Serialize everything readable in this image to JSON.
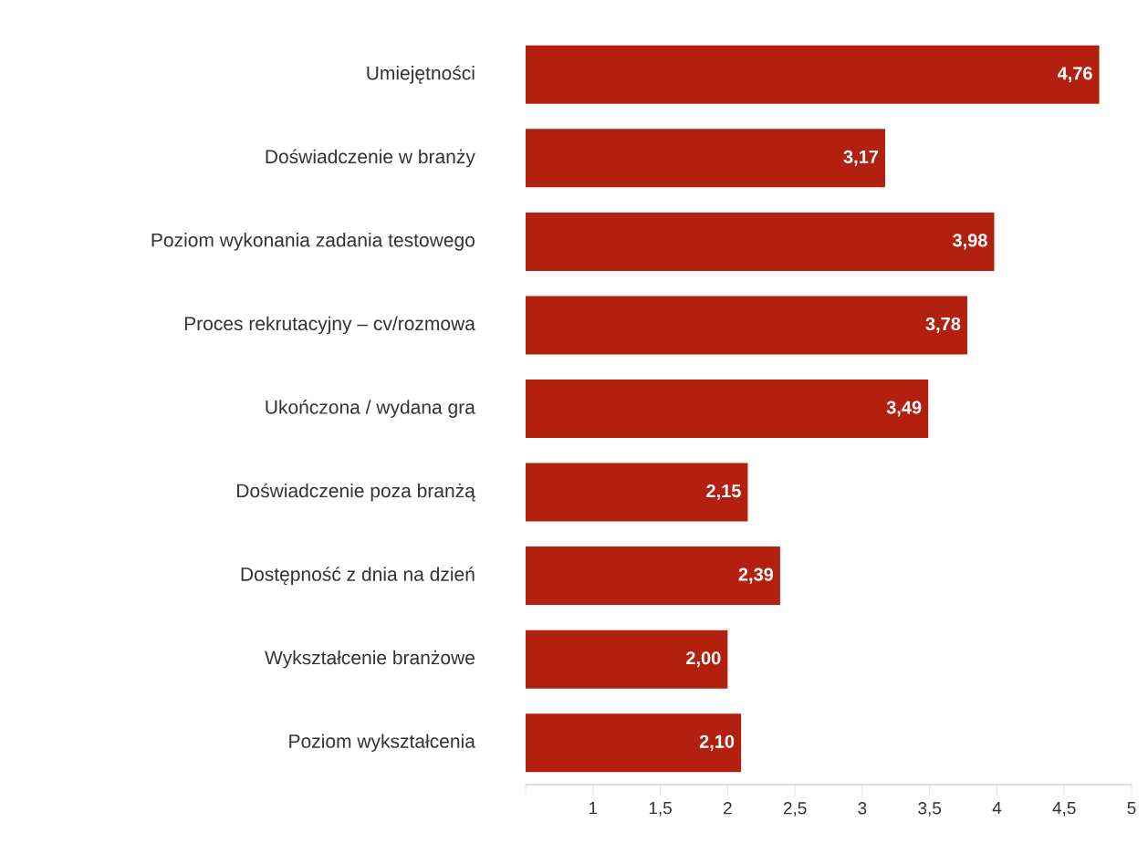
{
  "chart_data": {
    "type": "bar",
    "orientation": "horizontal",
    "categories": [
      "Umiejętności",
      "Doświadczenie w branży",
      "Poziom wykonania zadania testowego",
      "Proces rekrutacyjny – cv/rozmowa",
      "Ukończona / wydana gra",
      "Doświadczenie poza branżą",
      "Dostępność z dnia na dzień",
      "Wykształcenie branżowe",
      "Poziom wykształcenia"
    ],
    "values": [
      4.76,
      3.17,
      3.98,
      3.78,
      3.49,
      2.15,
      2.39,
      2.0,
      2.1
    ],
    "value_labels": [
      "4,76",
      "3,17",
      "3,98",
      "3,78",
      "3,49",
      "2,15",
      "2,39",
      "2,00",
      "2,10"
    ],
    "color": "#b3200f",
    "xlim": [
      0.5,
      5
    ],
    "xticks": [
      {
        "value": 0.5,
        "label": null
      },
      1,
      {
        "value": 1.5,
        "label": "1,5"
      },
      2,
      {
        "value": 2.5,
        "label": "2,5"
      },
      3,
      {
        "value": 3.5,
        "label": "3,5"
      },
      4,
      {
        "value": 4.5,
        "label": "4,5"
      },
      5
    ],
    "grid": false
  }
}
